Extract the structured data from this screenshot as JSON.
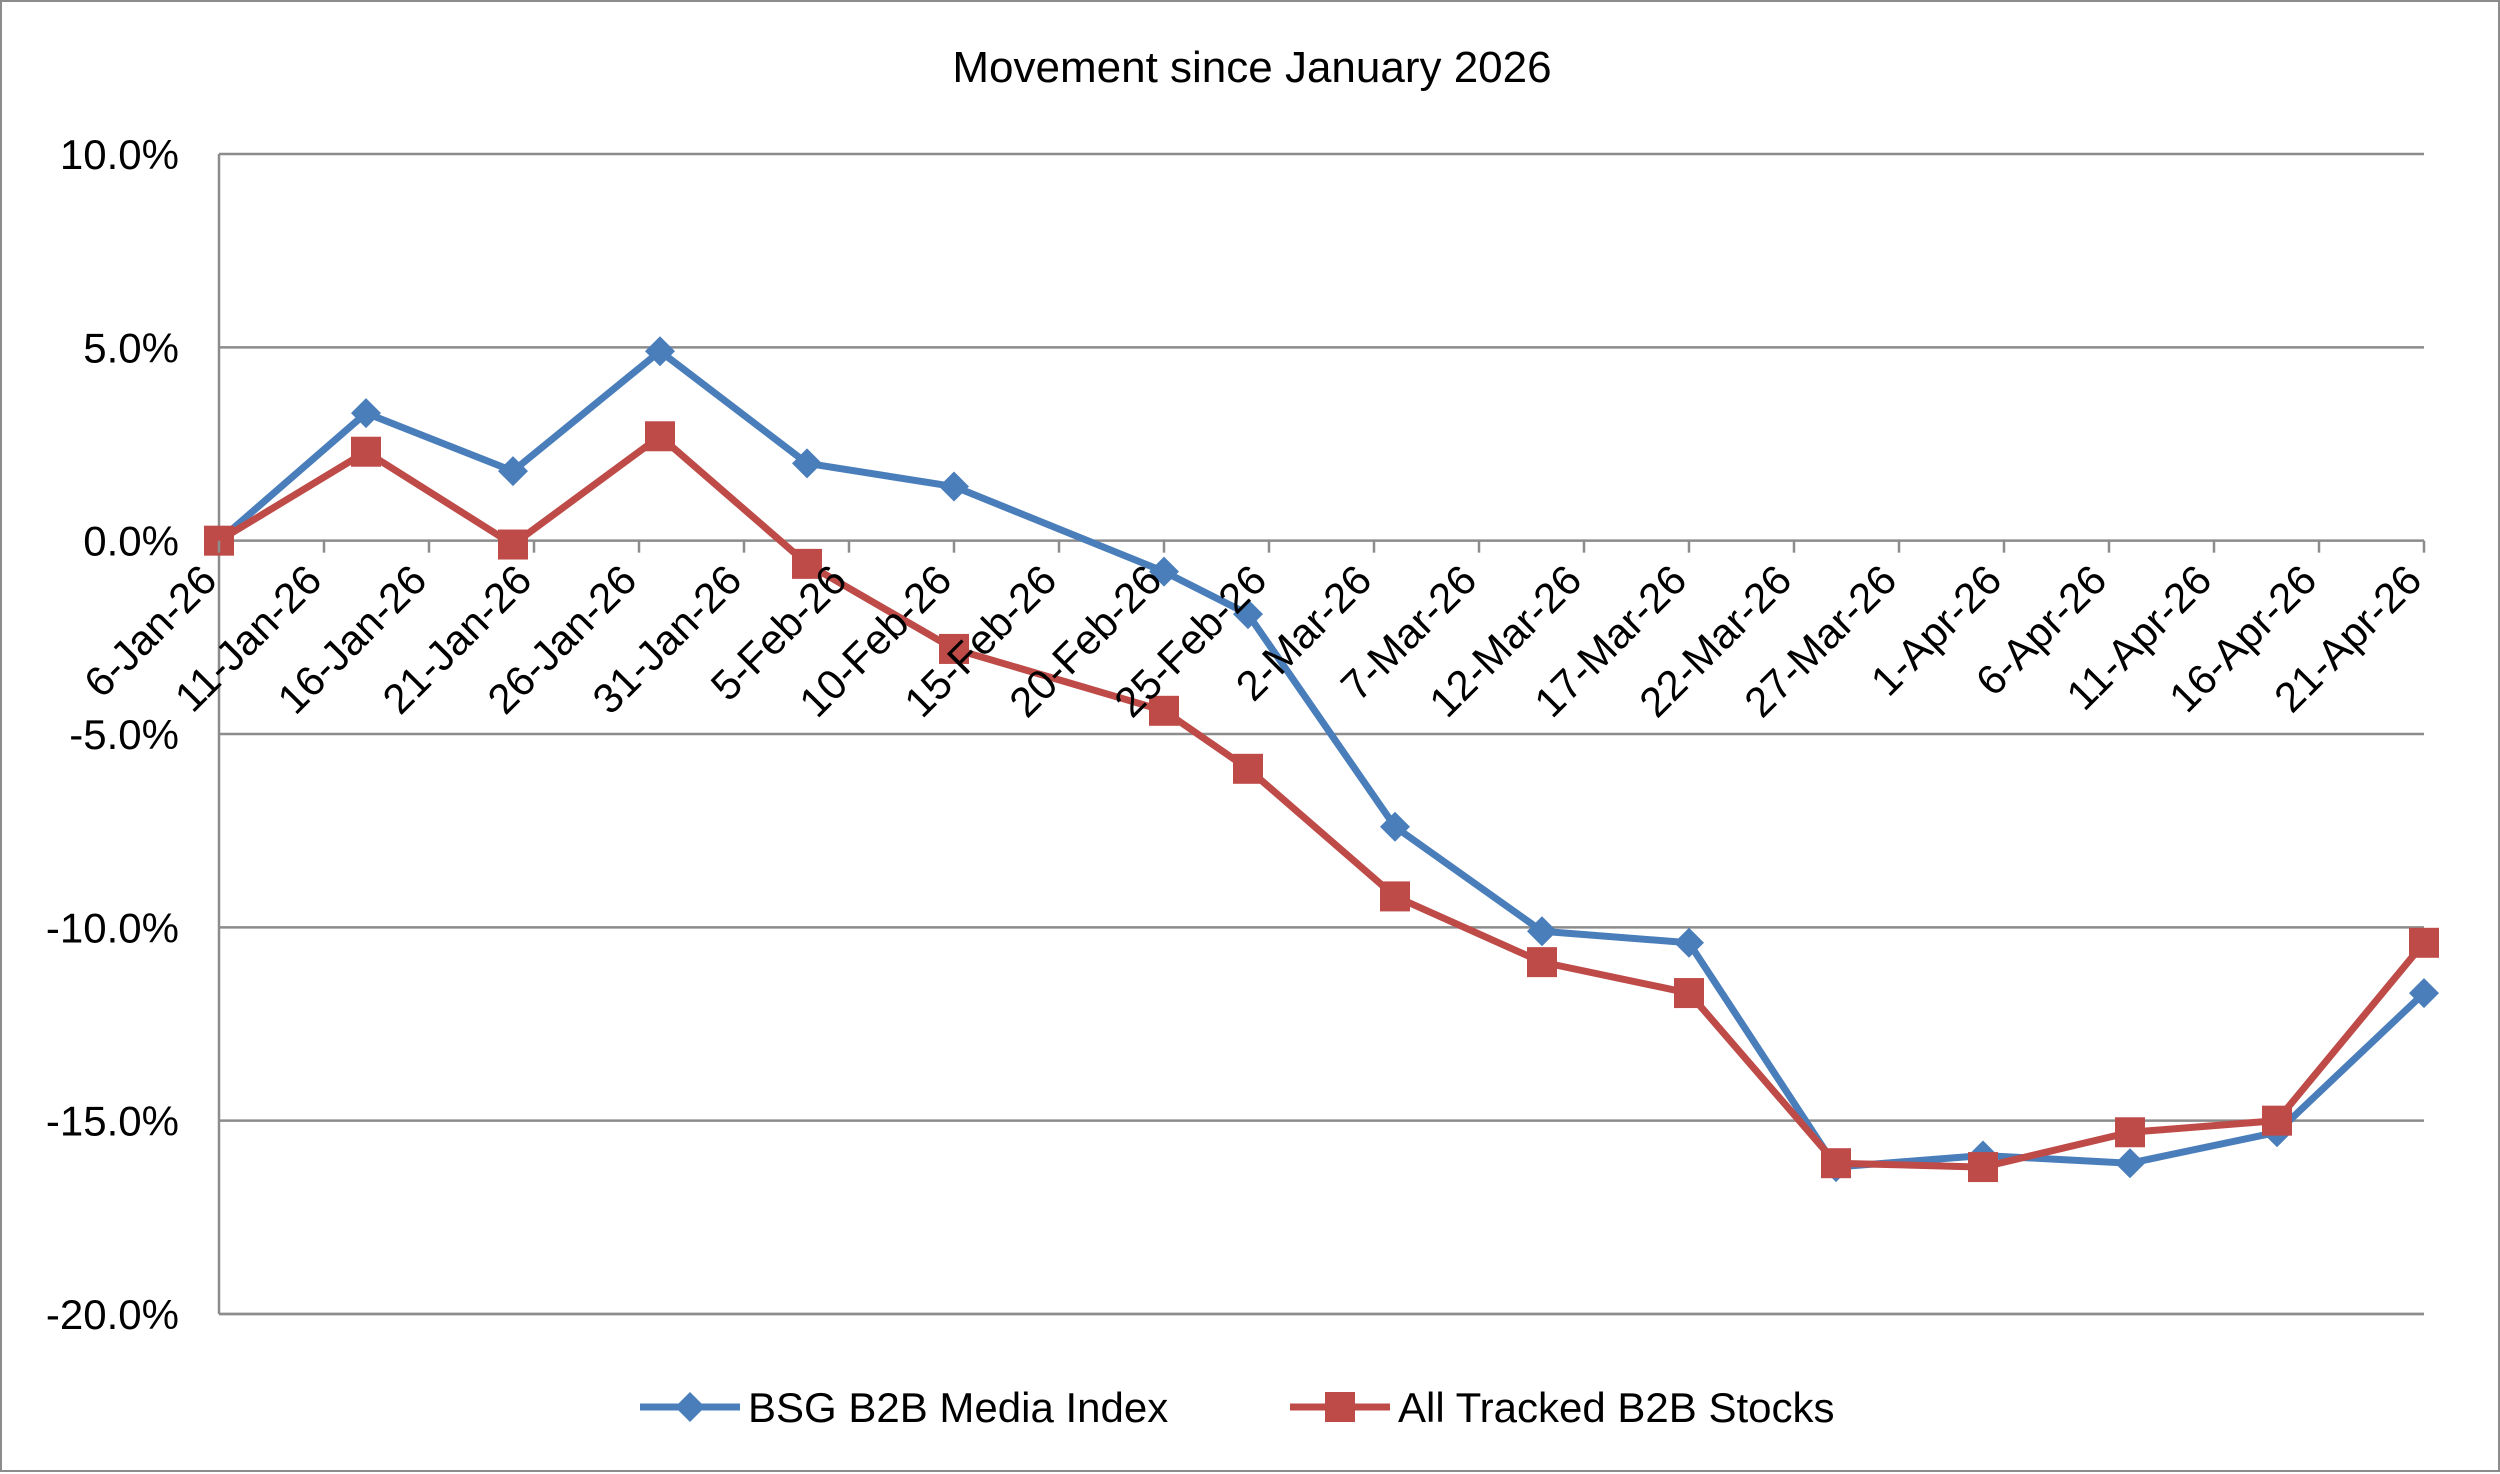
{
  "chart_data": {
    "type": "line",
    "title": "Movement since January 2026",
    "xlabel": "",
    "ylabel": "",
    "ylim": [
      -20,
      10
    ],
    "ytick_step": 5,
    "ytick_labels": [
      "10.0%",
      "5.0%",
      "0.0%",
      "-5.0%",
      "-10.0%",
      "-15.0%",
      "-20.0%"
    ],
    "x_range_days": [
      "6-Jan-26",
      "21-Apr-26"
    ],
    "tick_labels": [
      "6-Jan-26",
      "11-Jan-26",
      "16-Jan-26",
      "21-Jan-26",
      "26-Jan-26",
      "31-Jan-26",
      "5-Feb-26",
      "10-Feb-26",
      "15-Feb-26",
      "20-Feb-26",
      "25-Feb-26",
      "2-Mar-26",
      "7-Mar-26",
      "12-Mar-26",
      "17-Mar-26",
      "22-Mar-26",
      "27-Mar-26",
      "1-Apr-26",
      "6-Apr-26",
      "11-Apr-26",
      "16-Apr-26",
      "21-Apr-26"
    ],
    "grid": true,
    "legend_position": "bottom",
    "series": [
      {
        "name": "BSG B2B Media Index",
        "color": "#4a7ebb",
        "marker": "diamond",
        "x": [
          "6-Jan-26",
          "13-Jan-26",
          "20-Jan-26",
          "27-Jan-26",
          "3-Feb-26",
          "10-Feb-26",
          "20-Feb-26",
          "24-Feb-26",
          "3-Mar-26",
          "10-Mar-26",
          "17-Mar-26",
          "24-Mar-26",
          "31-Mar-26",
          "7-Apr-26",
          "14-Apr-26",
          "21-Apr-26"
        ],
        "values": [
          0.0,
          3.3,
          1.8,
          4.9,
          2.0,
          1.4,
          -0.8,
          -1.9,
          -7.4,
          -10.1,
          -10.4,
          -16.2,
          -15.9,
          -16.1,
          -15.3,
          -11.7
        ]
      },
      {
        "name": "All Tracked B2B Stocks",
        "color": "#be4b48",
        "marker": "square",
        "x": [
          "6-Jan-26",
          "13-Jan-26",
          "20-Jan-26",
          "27-Jan-26",
          "3-Feb-26",
          "10-Feb-26",
          "20-Feb-26",
          "24-Feb-26",
          "3-Mar-26",
          "10-Mar-26",
          "17-Mar-26",
          "24-Mar-26",
          "31-Mar-26",
          "7-Apr-26",
          "14-Apr-26",
          "21-Apr-26"
        ],
        "values": [
          0.0,
          2.3,
          -0.1,
          2.7,
          -0.6,
          -2.8,
          -4.4,
          -5.9,
          -9.2,
          -10.9,
          -11.7,
          -16.1,
          -16.2,
          -15.3,
          -15.0,
          -10.4
        ]
      }
    ]
  }
}
